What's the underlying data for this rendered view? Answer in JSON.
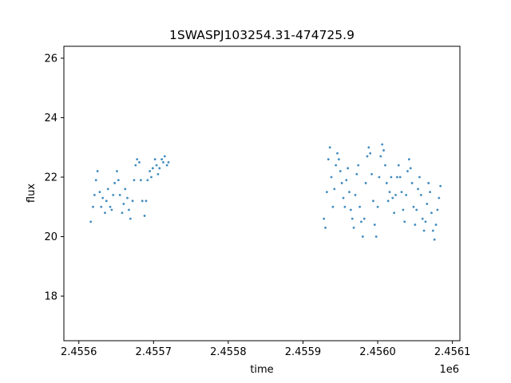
{
  "chart_data": {
    "type": "scatter",
    "title": "1SWASPJ103254.31-474725.9",
    "xlabel": "time",
    "ylabel": "flux",
    "x_offset_label": "1e6",
    "xlim": [
      2.45558,
      2.45611
    ],
    "ylim": [
      16.5,
      26.4
    ],
    "x_ticks": [
      2.4556,
      2.4557,
      2.4558,
      2.4559,
      2.456,
      2.4561
    ],
    "x_tick_labels": [
      "2.4556",
      "2.4557",
      "2.4558",
      "2.4559",
      "2.4560",
      "2.4561"
    ],
    "y_ticks": [
      18,
      20,
      22,
      24,
      26
    ],
    "y_tick_labels": [
      "18",
      "20",
      "22",
      "24",
      "26"
    ],
    "grid": false,
    "marker_color": "#1f77b4",
    "series": [
      {
        "x": [
          2.455616,
          2.455619,
          2.455621,
          2.455623,
          2.455625,
          2.455628,
          2.45563,
          2.455632,
          2.455635,
          2.455637,
          2.455639,
          2.455642,
          2.455644,
          2.455646,
          2.455648,
          2.455651,
          2.455653,
          2.455655,
          2.455658,
          2.45566,
          2.455662,
          2.455665,
          2.455667,
          2.455669,
          2.455672,
          2.455674,
          2.455676,
          2.455678,
          2.455681,
          2.455683,
          2.455685,
          2.455688,
          2.45569,
          2.455692,
          2.455695,
          2.455697,
          2.455699,
          2.455702,
          2.455704,
          2.455706,
          2.455708,
          2.455711,
          2.455713,
          2.455715,
          2.455718,
          2.45572
        ],
        "y": [
          20.5,
          21.0,
          21.4,
          21.9,
          22.2,
          21.5,
          21.0,
          21.3,
          20.8,
          21.2,
          21.6,
          21.0,
          20.9,
          21.4,
          21.8,
          22.2,
          21.9,
          21.4,
          20.8,
          21.1,
          21.6,
          21.3,
          20.9,
          20.6,
          21.2,
          21.9,
          22.4,
          22.6,
          22.5,
          21.9,
          21.2,
          20.7,
          21.2,
          21.9,
          22.2,
          22.0,
          22.3,
          22.6,
          22.4,
          22.1,
          22.3,
          22.6,
          22.5,
          22.7,
          22.4,
          22.5
        ]
      },
      {
        "x": [
          2.455928,
          2.45593,
          2.455932,
          2.455934,
          2.455936,
          2.455938,
          2.45594,
          2.455942,
          2.455944,
          2.455946,
          2.455948,
          2.45595,
          2.455952,
          2.455954,
          2.455956,
          2.455958,
          2.45596,
          2.455962,
          2.455964,
          2.455966,
          2.455968,
          2.45597,
          2.455972,
          2.455974,
          2.455976,
          2.455978,
          2.45598,
          2.455982,
          2.455984,
          2.455986,
          2.455988,
          2.45599,
          2.455992,
          2.455994,
          2.455996,
          2.455998,
          2.456,
          2.456002,
          2.456004,
          2.456006,
          2.456008,
          2.45601,
          2.456012,
          2.456014,
          2.456016,
          2.456018,
          2.45602,
          2.456022,
          2.456024,
          2.456026,
          2.456028,
          2.45603,
          2.456032,
          2.456034,
          2.456036,
          2.456038,
          2.45604,
          2.456042,
          2.456044,
          2.456046,
          2.456048,
          2.45605,
          2.456052,
          2.456054,
          2.456056,
          2.456058,
          2.45606,
          2.456062,
          2.456064,
          2.456066,
          2.456068,
          2.45607,
          2.456072,
          2.456074,
          2.456076,
          2.456078,
          2.45608,
          2.456082,
          2.456084
        ],
        "y": [
          20.6,
          20.3,
          21.5,
          22.6,
          23.0,
          22.0,
          21.0,
          21.6,
          22.4,
          22.8,
          22.6,
          22.2,
          21.8,
          21.3,
          21.0,
          21.9,
          22.3,
          21.5,
          20.9,
          20.6,
          20.3,
          21.4,
          22.1,
          22.4,
          21.0,
          20.5,
          20.0,
          20.6,
          21.8,
          22.7,
          23.0,
          22.8,
          22.1,
          21.2,
          20.4,
          20.0,
          21.0,
          22.0,
          22.7,
          23.1,
          22.9,
          22.4,
          21.8,
          21.2,
          21.5,
          22.0,
          21.3,
          20.8,
          21.4,
          22.0,
          22.4,
          22.0,
          21.5,
          20.9,
          20.5,
          21.4,
          22.2,
          22.6,
          22.3,
          21.8,
          21.0,
          20.4,
          20.9,
          21.6,
          22.0,
          21.4,
          20.6,
          20.2,
          20.5,
          21.1,
          21.8,
          21.5,
          20.8,
          20.2,
          19.9,
          20.4,
          20.9,
          21.3,
          21.7
        ]
      }
    ]
  }
}
